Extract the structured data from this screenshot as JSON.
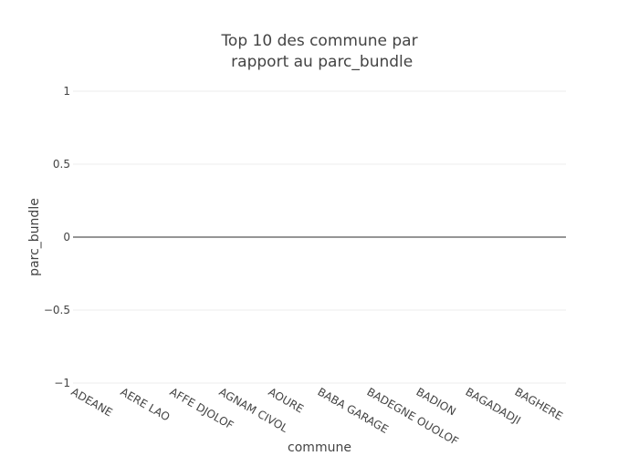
{
  "chart_data": {
    "type": "bar",
    "title_lines": [
      "Top 10 des commune par",
      " rapport au parc_bundle"
    ],
    "xlabel": "commune",
    "ylabel": "parc_bundle",
    "categories": [
      "ADEANE",
      "AERE LAO",
      "AFFE DJOLOF",
      "AGNAM CIVOL",
      "AOURE",
      "BABA GARAGE",
      "BADEGNE OUOLOF",
      "BADION",
      "BAGADADJI",
      "BAGHERE"
    ],
    "values": [
      0,
      0,
      0,
      0,
      0,
      0,
      0,
      0,
      0,
      0
    ],
    "ylim": [
      -1,
      1
    ],
    "yticks": [
      {
        "value": 1,
        "label": "1"
      },
      {
        "value": 0.5,
        "label": "0.5"
      },
      {
        "value": 0,
        "label": "0"
      },
      {
        "value": -0.5,
        "label": "−0.5"
      },
      {
        "value": -1,
        "label": "−1"
      }
    ],
    "grid": true,
    "colors": {
      "text": "#444444",
      "grid": "#eeeeee",
      "zeroline": "#444444"
    }
  }
}
